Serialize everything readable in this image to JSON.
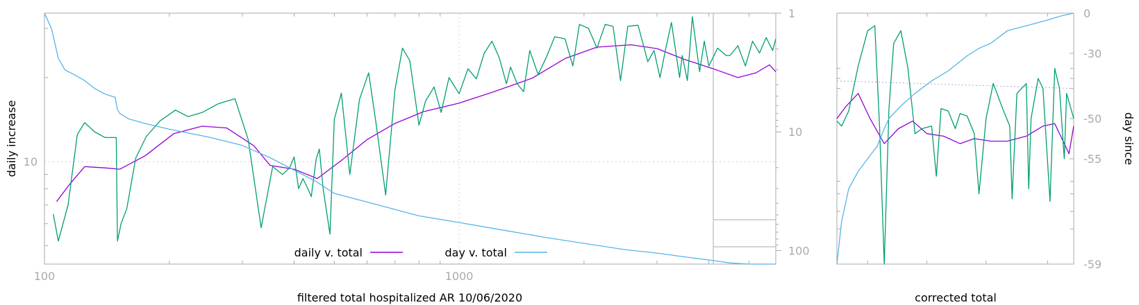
{
  "chart_data": [
    {
      "type": "line",
      "xlabel": "filtered total hospitalized AR 10/06/2020",
      "ylabel_left": "daily increase",
      "x_scale": "log",
      "y_scale_left": "log",
      "y_scale_right": "log",
      "y_right_reversed": true,
      "xlim": [
        100,
        5800
      ],
      "ylim_left": [
        4.3,
        34
      ],
      "ylim_right": [
        1,
        130
      ],
      "x_ticks": [
        {
          "value": 100,
          "label": "100"
        },
        {
          "value": 1000,
          "label": "1000"
        }
      ],
      "y_left_ticks": [
        {
          "value": 10,
          "label": "10"
        }
      ],
      "y_right_ticks": [
        {
          "value": 1,
          "label": "1"
        },
        {
          "value": 10,
          "label": "10"
        },
        {
          "value": 100,
          "label": "100"
        }
      ],
      "grid": true,
      "legend_position": "bottom-center",
      "series": [
        {
          "name": "daily v. total",
          "axis": "left",
          "color": "#9400d3",
          "x": [
            107,
            115,
            125,
            140,
            152,
            175,
            205,
            240,
            275,
            320,
            350,
            400,
            455,
            520,
            600,
            700,
            820,
            1000,
            1200,
            1500,
            1800,
            2150,
            2600,
            3000,
            3500,
            4100,
            4700,
            5200,
            5600,
            5800
          ],
          "y": [
            7.2,
            8.3,
            9.6,
            9.5,
            9.4,
            10.5,
            12.6,
            13.4,
            13.2,
            11.4,
            9.7,
            9.4,
            8.7,
            10.1,
            12.0,
            13.7,
            15.1,
            16.2,
            17.7,
            19.9,
            23.4,
            25.7,
            26.2,
            25.4,
            23.2,
            21.5,
            20.0,
            20.8,
            22.2,
            21.0
          ]
        },
        {
          "name": "",
          "axis": "left",
          "color": "#009e73",
          "x": [
            105,
            108,
            114,
            120,
            125,
            132,
            140,
            149,
            150,
            153,
            158,
            166,
            176,
            190,
            207,
            222,
            240,
            262,
            288,
            310,
            333,
            355,
            375,
            390,
            400,
            410,
            420,
            430,
            440,
            452,
            460,
            470,
            488,
            500,
            520,
            545,
            575,
            605,
            630,
            665,
            700,
            730,
            760,
            800,
            830,
            870,
            905,
            945,
            1000,
            1050,
            1100,
            1150,
            1200,
            1250,
            1300,
            1330,
            1380,
            1430,
            1480,
            1550,
            1620,
            1700,
            1800,
            1880,
            1950,
            2050,
            2150,
            2250,
            2350,
            2450,
            2550,
            2700,
            2850,
            2950,
            3050,
            3150,
            3250,
            3400,
            3450,
            3550,
            3650,
            3800,
            3900,
            4000,
            4200,
            4400,
            4500,
            4700,
            4900,
            5100,
            5300,
            5500,
            5700,
            5800
          ],
          "y": [
            6.5,
            5.2,
            7.0,
            12.5,
            13.8,
            12.8,
            12.2,
            12.2,
            5.2,
            6.0,
            6.8,
            10.3,
            12.3,
            14.0,
            15.3,
            14.5,
            15.0,
            16.1,
            16.8,
            12.0,
            5.8,
            9.6,
            9.0,
            9.5,
            10.4,
            8.0,
            8.7,
            8.1,
            7.5,
            10.2,
            11.1,
            8.0,
            5.5,
            14.2,
            17.6,
            9.0,
            16.7,
            20.8,
            13.8,
            7.6,
            18.0,
            25.5,
            23.0,
            13.5,
            16.5,
            18.5,
            15.0,
            20.0,
            17.5,
            21.5,
            19.8,
            24.5,
            27.0,
            23.5,
            19.0,
            21.8,
            19.0,
            17.8,
            25.0,
            20.5,
            23.5,
            28.0,
            27.5,
            22.0,
            31.0,
            30.0,
            25.5,
            31.0,
            30.5,
            19.5,
            30.5,
            30.8,
            22.8,
            25.0,
            20.0,
            25.5,
            31.5,
            20.0,
            24.0,
            19.5,
            33.0,
            21.0,
            27.0,
            22.0,
            25.5,
            24.0,
            24.0,
            26.0,
            22.0,
            27.0,
            24.5,
            27.8,
            25.0,
            27.5
          ]
        },
        {
          "name": "day v. total",
          "axis": "right",
          "color": "#56b4e9",
          "x": [
            100,
            104,
            108,
            112,
            118,
            125,
            132,
            140,
            148,
            150,
            152,
            160,
            175,
            200,
            250,
            300,
            350,
            400,
            450,
            500,
            600,
            700,
            800,
            1000,
            1300,
            1600,
            2000,
            2500,
            3000,
            3500,
            4000,
            4500,
            5000,
            5500,
            5800
          ],
          "y": [
            1.0,
            1.35,
            2.4,
            3.0,
            3.3,
            3.7,
            4.3,
            4.8,
            5.1,
            6.5,
            7.0,
            7.8,
            8.5,
            9.5,
            11.1,
            13.0,
            16.5,
            21.0,
            26.0,
            33.0,
            39.0,
            45.0,
            51.0,
            58.0,
            68.0,
            77.0,
            87.0,
            98.0,
            105.0,
            113.0,
            120.0,
            127.0,
            140.0,
            155.0,
            165.0
          ]
        }
      ]
    },
    {
      "type": "line",
      "xlabel": "corrected total",
      "ylabel_right": "day since",
      "y_right_ticks": [
        {
          "value": 0,
          "label": "0"
        },
        {
          "value": -30,
          "label": "-30"
        },
        {
          "value": -50,
          "label": "-50"
        },
        {
          "value": -55,
          "label": "-55"
        },
        {
          "value": -59,
          "label": "-59"
        }
      ],
      "grid": true,
      "series": [
        {
          "name": "",
          "color": "#9400d3",
          "t": [
            0,
            0.04,
            0.09,
            0.14,
            0.2,
            0.26,
            0.32,
            0.38,
            0.45,
            0.52,
            0.58,
            0.65,
            0.72,
            0.8,
            0.87,
            0.92,
            0.95,
            0.98,
            1.0
          ],
          "level": [
            0.58,
            0.63,
            0.68,
            0.58,
            0.48,
            0.54,
            0.57,
            0.52,
            0.51,
            0.48,
            0.5,
            0.49,
            0.49,
            0.51,
            0.55,
            0.56,
            0.5,
            0.44,
            0.55
          ]
        },
        {
          "name": "",
          "color": "#009e73",
          "t": [
            0,
            0.02,
            0.05,
            0.09,
            0.13,
            0.16,
            0.18,
            0.2,
            0.22,
            0.24,
            0.27,
            0.3,
            0.33,
            0.36,
            0.4,
            0.42,
            0.44,
            0.47,
            0.5,
            0.52,
            0.55,
            0.58,
            0.6,
            0.63,
            0.66,
            0.7,
            0.73,
            0.74,
            0.76,
            0.8,
            0.81,
            0.82,
            0.85,
            0.87,
            0.9,
            0.92,
            0.94,
            0.96,
            0.97,
            1.0
          ],
          "level": [
            0.57,
            0.55,
            0.61,
            0.79,
            0.93,
            0.95,
            0.55,
            0.0,
            0.62,
            0.88,
            0.93,
            0.78,
            0.52,
            0.54,
            0.55,
            0.35,
            0.62,
            0.61,
            0.54,
            0.6,
            0.59,
            0.52,
            0.28,
            0.58,
            0.72,
            0.62,
            0.55,
            0.26,
            0.68,
            0.72,
            0.3,
            0.58,
            0.74,
            0.7,
            0.25,
            0.78,
            0.7,
            0.42,
            0.68,
            0.58
          ]
        },
        {
          "name": "",
          "color": "#56b4e9",
          "t": [
            0,
            0.02,
            0.05,
            0.09,
            0.13,
            0.17,
            0.2,
            0.22,
            0.27,
            0.33,
            0.4,
            0.47,
            0.55,
            0.6,
            0.65,
            0.72,
            0.8,
            0.88,
            0.95,
            1.0
          ],
          "level": [
            0.0,
            0.17,
            0.3,
            0.37,
            0.42,
            0.47,
            0.54,
            0.58,
            0.63,
            0.68,
            0.73,
            0.77,
            0.83,
            0.86,
            0.88,
            0.93,
            0.95,
            0.97,
            0.99,
            1.0
          ]
        }
      ]
    }
  ]
}
